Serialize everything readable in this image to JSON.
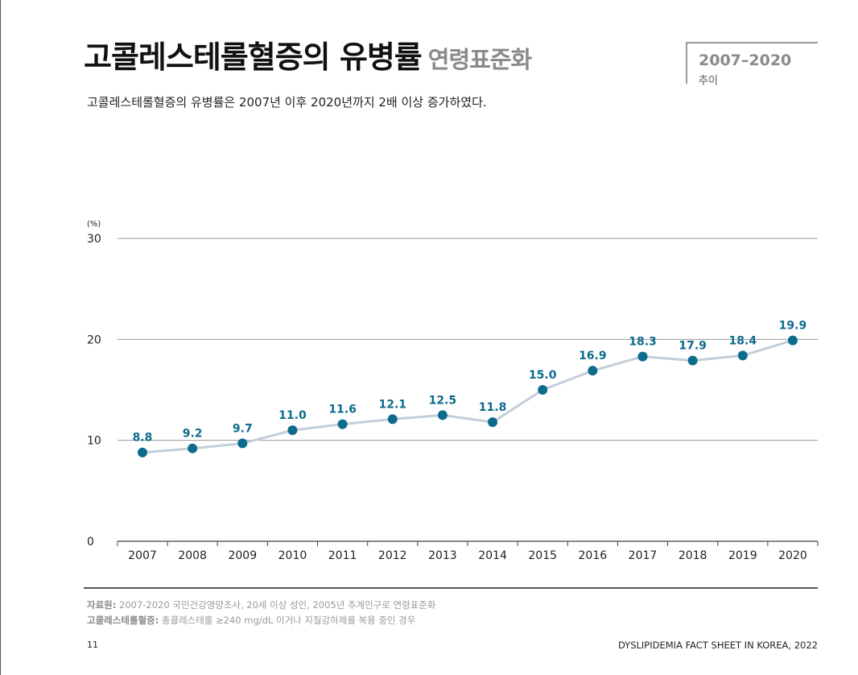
{
  "page": {
    "title": "고콜레스테롤혈증의 유병률",
    "title_sub": "연령표준화",
    "subtitle": "고콜레스테롤혈증의 유병률은 2007년 이후 2020년까지 2배 이상 증가하였다.",
    "badge_range": "2007–2020",
    "badge_label": "추이",
    "source_label": "자료원:",
    "source_text": "2007-2020 국민건강영양조사, 20세 이상 성인, 2005년 추계인구로 연령표준화",
    "definition_label": "고콜레스테롤혈증:",
    "definition_text": "총콜레스테롤 ≥240 mg/dL 이거나 지질강하제를 복용 중인 경우",
    "page_number": "11",
    "doc_name": "DYSLIPIDEMIA FACT SHEET IN KOREA, 2022"
  },
  "chart_data": {
    "type": "line",
    "y_unit": "(%)",
    "x": [
      "2007",
      "2008",
      "2009",
      "2010",
      "2011",
      "2012",
      "2013",
      "2014",
      "2015",
      "2016",
      "2017",
      "2018",
      "2019",
      "2020"
    ],
    "values": [
      8.8,
      9.2,
      9.7,
      11.0,
      11.6,
      12.1,
      12.5,
      11.8,
      15.0,
      16.9,
      18.3,
      17.9,
      18.4,
      19.9
    ],
    "labels": [
      "8.8",
      "9.2",
      "9.7",
      "11.0",
      "11.6",
      "12.1",
      "12.5",
      "11.8",
      "15.0",
      "16.9",
      "18.3",
      "17.9",
      "18.4",
      "19.9"
    ],
    "ylim": [
      0,
      30
    ],
    "yticks": [
      0,
      10,
      20,
      30
    ],
    "grid": true,
    "line_color": "#c3ced8",
    "marker_color": "#0d6b8c",
    "label_color": "#0d6b8c"
  }
}
